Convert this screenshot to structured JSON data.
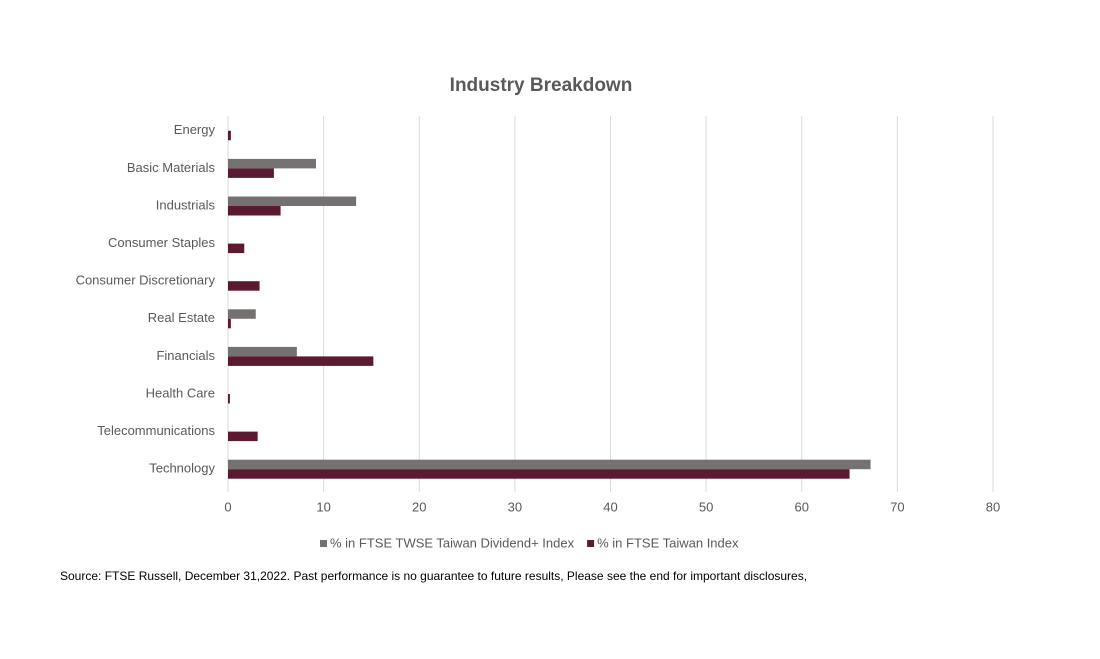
{
  "chart_data": {
    "type": "bar",
    "orientation": "horizontal",
    "title": "Industry Breakdown",
    "categories": [
      "Energy",
      "Basic Materials",
      "Industrials",
      "Consumer Staples",
      "Consumer Discretionary",
      "Real Estate",
      "Financials",
      "Health Care",
      "Telecommunications",
      "Technology"
    ],
    "series": [
      {
        "name": "% in FTSE TWSE Taiwan Dividend+ Index",
        "color": "#767171",
        "values": [
          0,
          9.2,
          13.4,
          0,
          0,
          2.9,
          7.2,
          0,
          0,
          67.2
        ]
      },
      {
        "name": "% in FTSE Taiwan Index",
        "color": "#5c1a32",
        "values": [
          0.3,
          4.8,
          5.5,
          1.7,
          3.3,
          0.3,
          15.2,
          0.2,
          3.1,
          65.0
        ]
      }
    ],
    "xlim": [
      0,
      80
    ],
    "xticks": [
      0,
      10,
      20,
      30,
      40,
      50,
      60,
      70,
      80
    ],
    "grid": true,
    "legend": "bottom",
    "source": "Source: FTSE Russell, December 31,2022. Past performance is no guarantee to future results, Please see the end for important disclosures,"
  }
}
